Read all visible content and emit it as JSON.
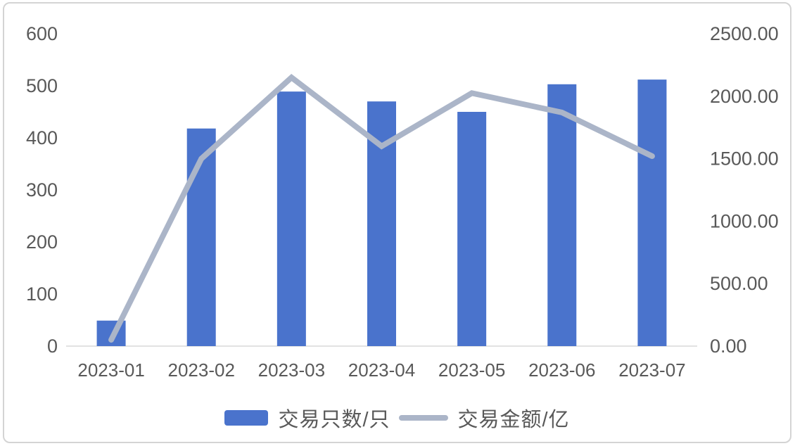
{
  "chart_data": {
    "type": "bar",
    "title": "",
    "categories": [
      "2023-01",
      "2023-02",
      "2023-03",
      "2023-04",
      "2023-05",
      "2023-06",
      "2023-07"
    ],
    "series": [
      {
        "name": "交易只数/只",
        "kind": "bar",
        "axis": "left",
        "color": "#4A73CC",
        "values": [
          49,
          418,
          489,
          470,
          450,
          503,
          512
        ]
      },
      {
        "name": "交易金额/亿",
        "kind": "line",
        "axis": "right",
        "color": "#ABB5C8",
        "values": [
          50,
          1500,
          2150,
          1600,
          2025,
          1870,
          1520
        ]
      }
    ],
    "left_axis": {
      "min": 0,
      "max": 600,
      "tick_labels": [
        "0",
        "100",
        "200",
        "300",
        "400",
        "500",
        "600"
      ]
    },
    "right_axis": {
      "min": 0,
      "max": 2500,
      "tick_labels": [
        "0.00",
        "500.00",
        "1000.00",
        "1500.00",
        "2000.00",
        "2500.00"
      ]
    },
    "grid": false,
    "legend_position": "bottom"
  },
  "styles": {
    "axis_text_color": "#595959",
    "baseline_color": "#d9d9d9",
    "bar_color": "#4A73CC",
    "line_color": "#ABB5C8"
  }
}
